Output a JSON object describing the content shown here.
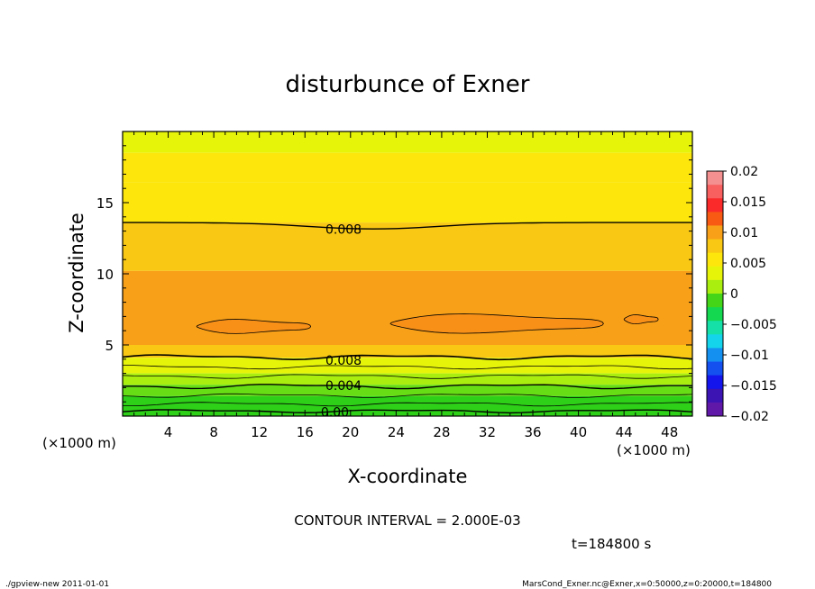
{
  "chart_data": {
    "type": "heatmap",
    "title": "disturbunce of Exner",
    "xlabel": "X-coordinate",
    "ylabel": "Z-coordinate",
    "x_unit": "(×1000 m)",
    "y_unit": "(×1000 m)",
    "xlim": [
      0,
      50
    ],
    "ylim": [
      0,
      20
    ],
    "x_ticks": [
      4,
      8,
      12,
      16,
      20,
      24,
      28,
      32,
      36,
      40,
      44,
      48
    ],
    "y_ticks": [
      5,
      10,
      15
    ],
    "colorbar": {
      "min": -0.02,
      "max": 0.02,
      "labels": [
        "0.02",
        "0.015",
        "0.01",
        "0.005",
        "0",
        "−0.005",
        "−0.01",
        "−0.015",
        "−0.02"
      ],
      "colors": [
        "#f59090",
        "#f86060",
        "#fa2a2a",
        "#f85a14",
        "#f8a018",
        "#f8c814",
        "#fce60c",
        "#e6f40a",
        "#aaee10",
        "#44d418",
        "#14d850",
        "#14e0a8",
        "#14d4ec",
        "#1490f0",
        "#1450f0",
        "#1414ec",
        "#3c14b4",
        "#6018a8"
      ]
    },
    "contour_interval": "CONTOUR INTERVAL = 2.000E-03",
    "contour_labels": [
      "0.008",
      "0.008",
      "0.004",
      "0.00"
    ],
    "bands": [
      {
        "z0": 18.5,
        "z1": 20.0,
        "color": "#e6f40a"
      },
      {
        "z0": 16.4,
        "z1": 18.5,
        "color": "#fce60c"
      },
      {
        "z0": 13.6,
        "z1": 16.4,
        "color": "#fce60c"
      },
      {
        "z0": 10.2,
        "z1": 13.6,
        "color": "#f8c814"
      },
      {
        "z0": 5.0,
        "z1": 10.2,
        "color": "#f8a018"
      },
      {
        "z0": 4.1,
        "z1": 5.0,
        "color": "#f8c814"
      },
      {
        "z0": 3.0,
        "z1": 4.1,
        "color": "#e6f40a"
      },
      {
        "z0": 2.2,
        "z1": 3.0,
        "color": "#aaee10"
      },
      {
        "z0": 1.4,
        "z1": 2.2,
        "color": "#66dd14"
      },
      {
        "z0": 0.0,
        "z1": 1.4,
        "color": "#2ed018"
      }
    ],
    "time_label": "t=184800 s",
    "footer_left": "./gpview-new  2011-01-01",
    "footer_right": "MarsCond_Exner.nc@Exner,x=0:50000,z=0:20000,t=184800"
  }
}
